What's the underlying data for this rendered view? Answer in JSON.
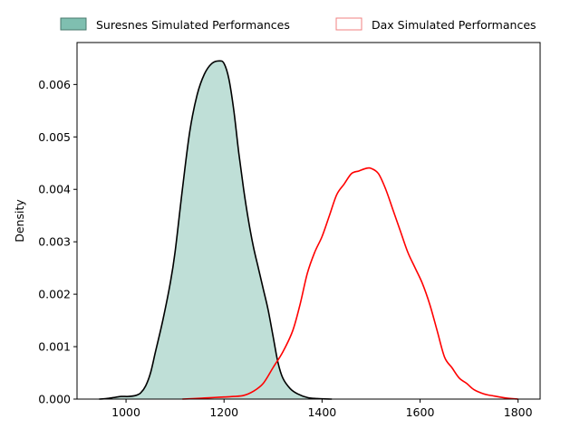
{
  "chart_data": {
    "type": "area",
    "title": "",
    "xlabel": "",
    "ylabel": "Density",
    "xlim": [
      900,
      1845
    ],
    "ylim": [
      0,
      0.0068
    ],
    "x_ticks": [
      1000,
      1200,
      1400,
      1600,
      1800
    ],
    "y_ticks": [
      0.0,
      0.001,
      0.002,
      0.003,
      0.004,
      0.005,
      0.006
    ],
    "y_tick_labels": [
      "0.000",
      "0.001",
      "0.002",
      "0.003",
      "0.004",
      "0.005",
      "0.006"
    ],
    "grid": false,
    "legend_position": "top",
    "series": [
      {
        "name": "Suresnes Simulated Performances",
        "style": "filled",
        "fill_color": "#7fbfb0",
        "fill_opacity": 0.5,
        "legend_color": "#79b8a6",
        "line_color": "#000000",
        "points": [
          [
            945,
            0.0
          ],
          [
            960,
            1e-05
          ],
          [
            975,
            3e-05
          ],
          [
            990,
            5e-05
          ],
          [
            1005,
            5e-05
          ],
          [
            1020,
            7e-05
          ],
          [
            1030,
            0.00012
          ],
          [
            1040,
            0.00025
          ],
          [
            1050,
            0.0005
          ],
          [
            1060,
            0.0009
          ],
          [
            1075,
            0.0015
          ],
          [
            1090,
            0.0022
          ],
          [
            1100,
            0.0028
          ],
          [
            1115,
            0.004
          ],
          [
            1130,
            0.0051
          ],
          [
            1145,
            0.0058
          ],
          [
            1160,
            0.0062
          ],
          [
            1175,
            0.0064
          ],
          [
            1190,
            0.00645
          ],
          [
            1200,
            0.0064
          ],
          [
            1210,
            0.0061
          ],
          [
            1220,
            0.0055
          ],
          [
            1230,
            0.0047
          ],
          [
            1240,
            0.004
          ],
          [
            1250,
            0.0034
          ],
          [
            1260,
            0.0029
          ],
          [
            1270,
            0.0025
          ],
          [
            1280,
            0.0021
          ],
          [
            1290,
            0.0017
          ],
          [
            1300,
            0.0012
          ],
          [
            1310,
            0.0007
          ],
          [
            1320,
            0.0004
          ],
          [
            1335,
            0.0002
          ],
          [
            1350,
            0.0001
          ],
          [
            1370,
            3e-05
          ],
          [
            1390,
            1e-05
          ],
          [
            1420,
            0.0
          ]
        ]
      },
      {
        "name": "Dax Simulated Performances",
        "style": "line",
        "line_color": "#ff0000",
        "legend_color": "#f08080",
        "points": [
          [
            1115,
            0.0
          ],
          [
            1140,
            1e-05
          ],
          [
            1160,
            2e-05
          ],
          [
            1180,
            3e-05
          ],
          [
            1200,
            4e-05
          ],
          [
            1220,
            5e-05
          ],
          [
            1240,
            7e-05
          ],
          [
            1260,
            0.00015
          ],
          [
            1280,
            0.0003
          ],
          [
            1300,
            0.0006
          ],
          [
            1320,
            0.0009
          ],
          [
            1340,
            0.0013
          ],
          [
            1355,
            0.0018
          ],
          [
            1370,
            0.0024
          ],
          [
            1385,
            0.0028
          ],
          [
            1400,
            0.0031
          ],
          [
            1415,
            0.0035
          ],
          [
            1430,
            0.0039
          ],
          [
            1445,
            0.0041
          ],
          [
            1460,
            0.0043
          ],
          [
            1475,
            0.00435
          ],
          [
            1490,
            0.0044
          ],
          [
            1500,
            0.0044
          ],
          [
            1515,
            0.0043
          ],
          [
            1530,
            0.004
          ],
          [
            1545,
            0.0036
          ],
          [
            1560,
            0.0032
          ],
          [
            1575,
            0.0028
          ],
          [
            1590,
            0.0025
          ],
          [
            1605,
            0.0022
          ],
          [
            1620,
            0.0018
          ],
          [
            1635,
            0.0013
          ],
          [
            1650,
            0.0008
          ],
          [
            1665,
            0.0006
          ],
          [
            1680,
            0.0004
          ],
          [
            1695,
            0.0003
          ],
          [
            1710,
            0.00018
          ],
          [
            1730,
            0.0001
          ],
          [
            1750,
            6e-05
          ],
          [
            1775,
            2e-05
          ],
          [
            1800,
            0.0
          ]
        ]
      }
    ]
  }
}
